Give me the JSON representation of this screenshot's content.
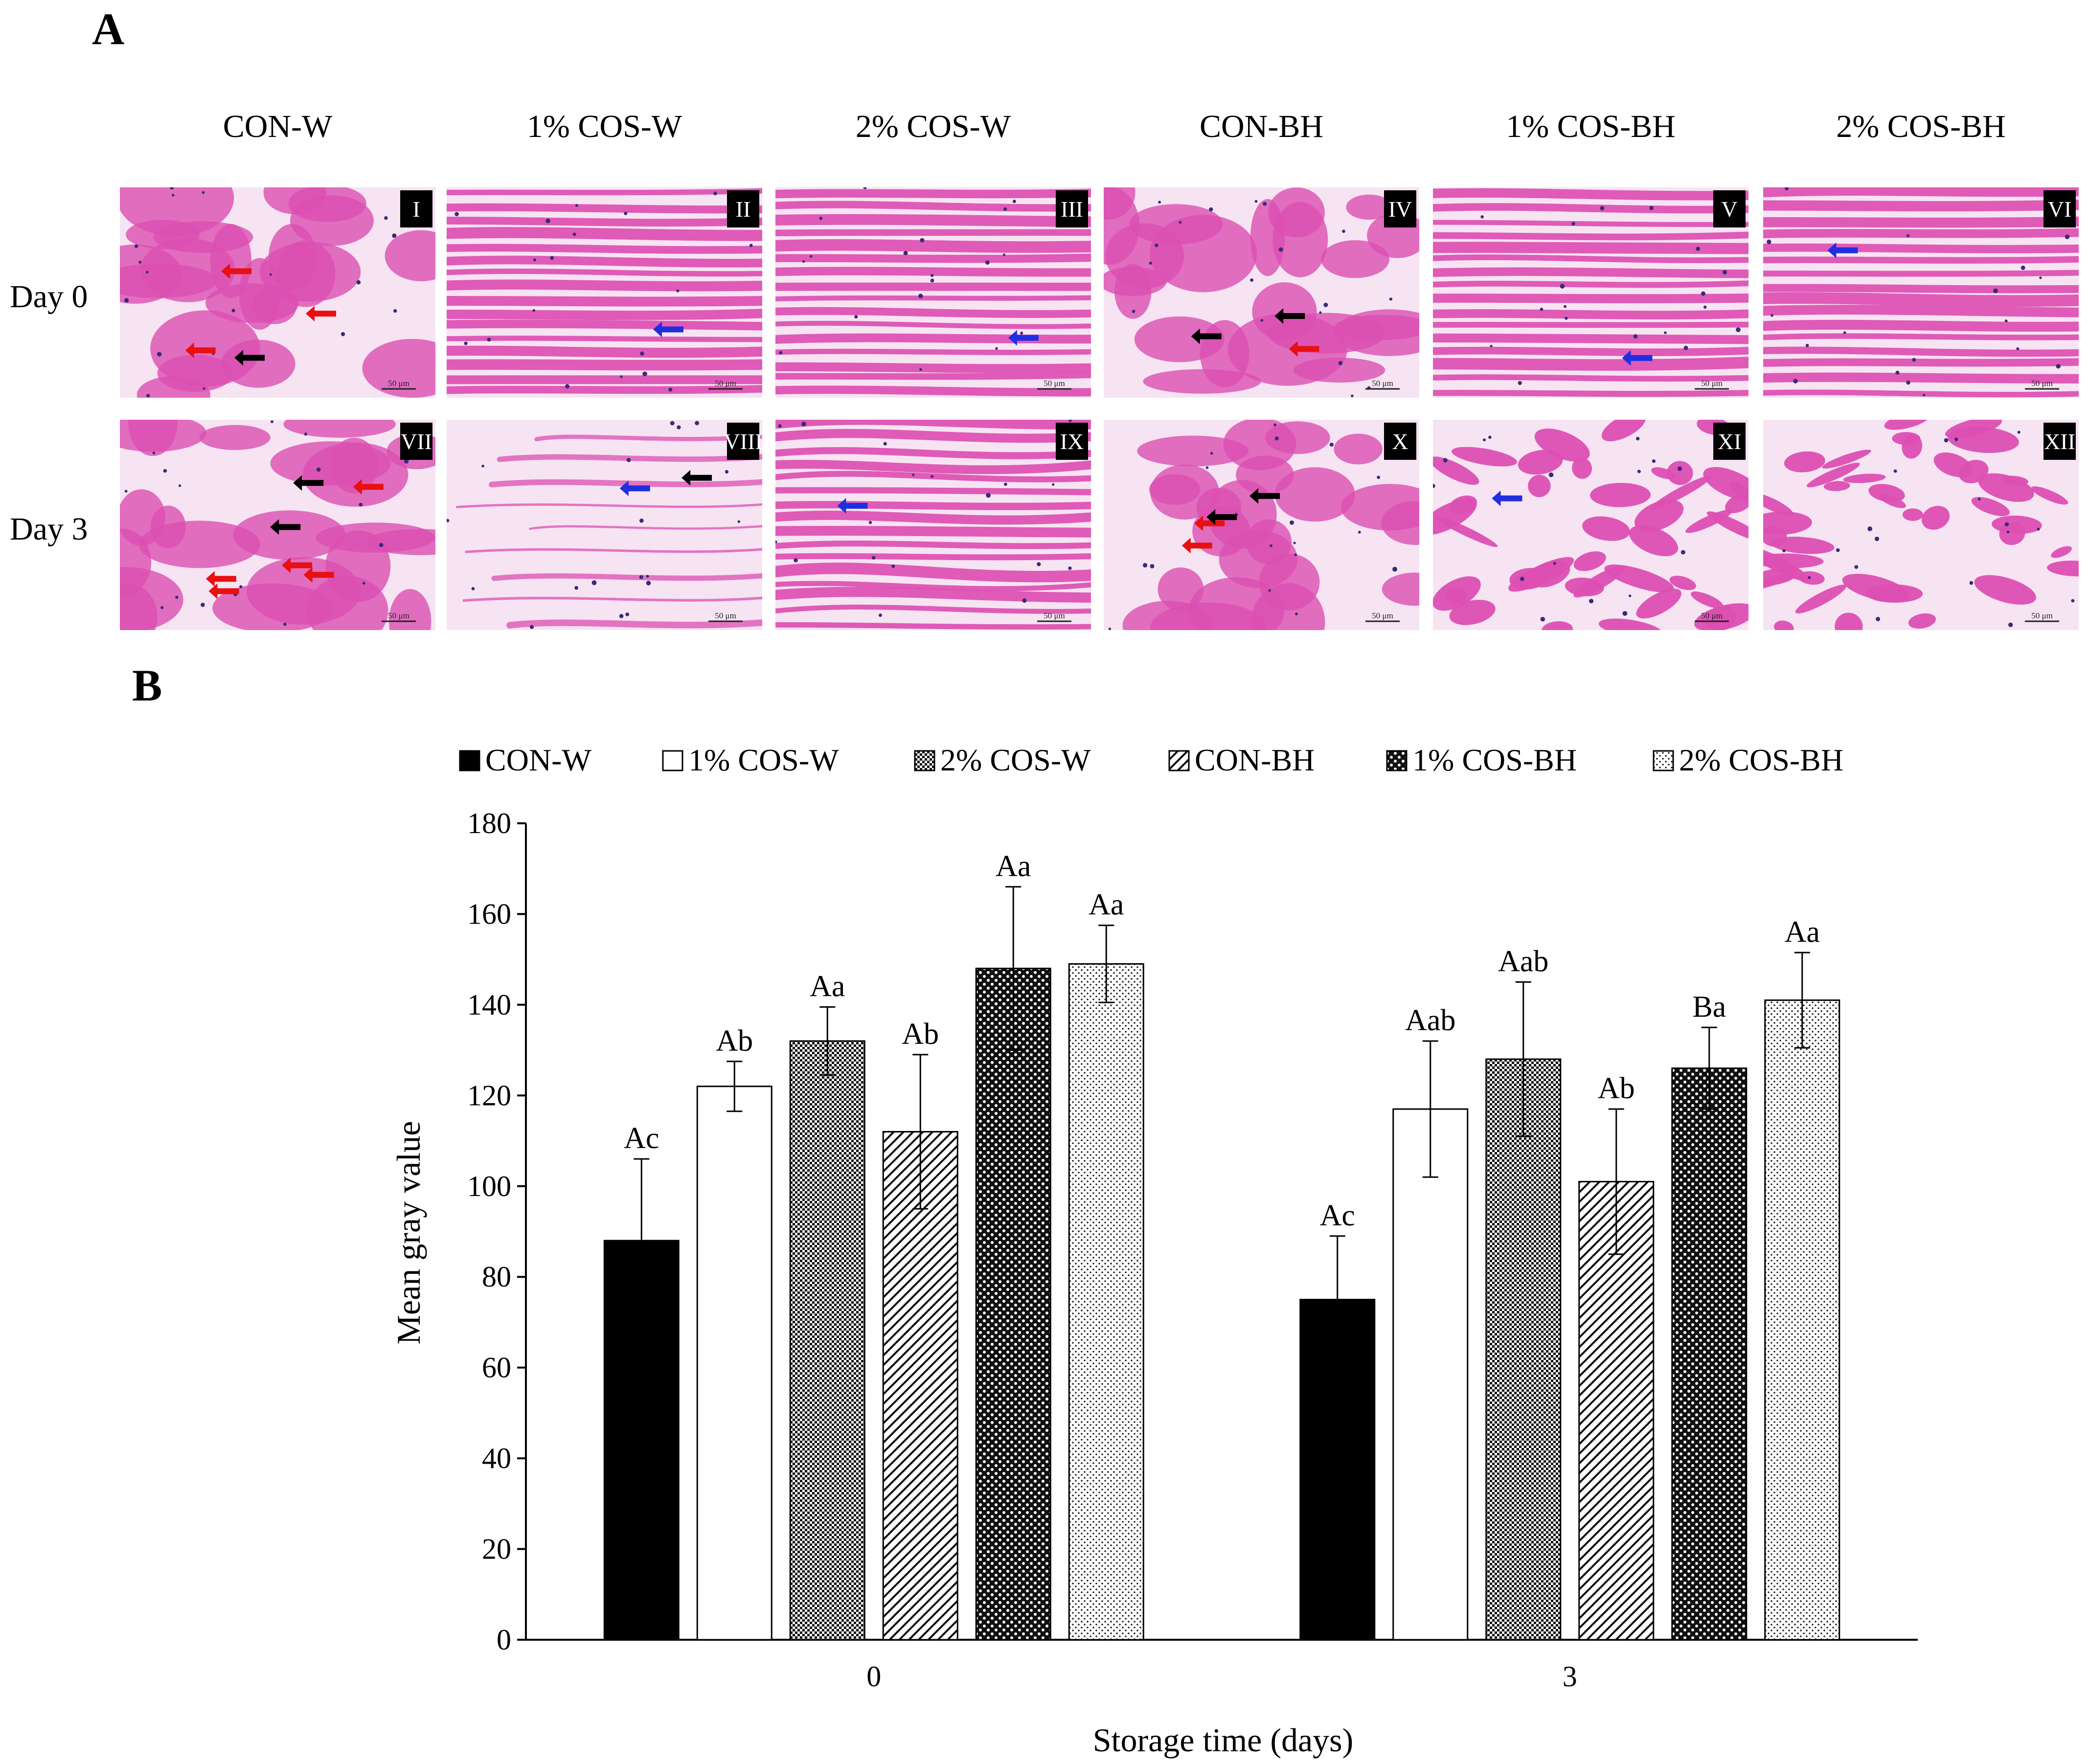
{
  "panel_a": {
    "letter": "A",
    "columns": [
      "CON-W",
      "1% COS-W",
      "2% COS-W",
      "CON-BH",
      "1% COS-BH",
      "2% COS-BH"
    ],
    "rows": [
      "Day 0",
      "Day 3"
    ],
    "numerals": [
      "I",
      "II",
      "III",
      "IV",
      "V",
      "VI",
      "VII",
      "VIII",
      "IX",
      "X",
      "XI",
      "XII"
    ],
    "scale_label": "50 μm",
    "stain_colors": {
      "background": "#f6e4f2",
      "fiber": "#dc4fb2",
      "nucleus": "#3a2a7a"
    },
    "arrow_colors": {
      "black": "#000000",
      "red": "#e81010",
      "blue": "#1f2fe0"
    },
    "arrows": [
      [
        {
          "c": "black"
        },
        {
          "c": "red"
        },
        {
          "c": "red"
        },
        {
          "c": "red"
        }
      ],
      [
        {
          "c": "blue"
        }
      ],
      [
        {
          "c": "blue"
        }
      ],
      [
        {
          "c": "black"
        },
        {
          "c": "black"
        },
        {
          "c": "red"
        }
      ],
      [
        {
          "c": "blue"
        }
      ],
      [
        {
          "c": "blue"
        }
      ],
      [
        {
          "c": "red"
        },
        {
          "c": "black"
        },
        {
          "c": "red"
        },
        {
          "c": "red"
        },
        {
          "c": "red"
        },
        {
          "c": "red"
        },
        {
          "c": "black"
        }
      ],
      [
        {
          "c": "black"
        },
        {
          "c": "blue"
        }
      ],
      [
        {
          "c": "blue"
        }
      ],
      [
        {
          "c": "red"
        },
        {
          "c": "red"
        },
        {
          "c": "black"
        },
        {
          "c": "black"
        }
      ],
      [
        {
          "c": "blue"
        }
      ],
      []
    ]
  },
  "panel_b": {
    "letter": "B"
  },
  "chart_data": {
    "type": "bar",
    "categories": [
      "0",
      "3"
    ],
    "xlabel": "Storage time (days)",
    "ylabel": "Mean gray value",
    "ylim": [
      0,
      180
    ],
    "yticks": [
      0,
      20,
      40,
      60,
      80,
      100,
      120,
      140,
      160,
      180
    ],
    "legend_position": "top",
    "grid": false,
    "series": [
      {
        "name": "CON-W",
        "pattern": "solid-black",
        "values": [
          88,
          75
        ],
        "errors": [
          18,
          14
        ],
        "labels": [
          "Ac",
          "Ac"
        ]
      },
      {
        "name": "1% COS-W",
        "pattern": "white",
        "values": [
          122,
          117
        ],
        "errors": [
          5.5,
          15
        ],
        "labels": [
          "Ab",
          "Aab"
        ]
      },
      {
        "name": "2% COS-W",
        "pattern": "dense-dark",
        "values": [
          132,
          128
        ],
        "errors": [
          7.5,
          17
        ],
        "labels": [
          "Aa",
          "Aab"
        ]
      },
      {
        "name": "CON-BH",
        "pattern": "diagonal",
        "values": [
          112,
          101
        ],
        "errors": [
          17,
          16
        ],
        "labels": [
          "Ab",
          "Ab"
        ]
      },
      {
        "name": "1% COS-BH",
        "pattern": "dots-dark",
        "values": [
          148,
          126
        ],
        "errors": [
          18,
          9
        ],
        "labels": [
          "Aa",
          "Ba"
        ]
      },
      {
        "name": "2% COS-BH",
        "pattern": "dots-light",
        "values": [
          149,
          141
        ],
        "errors": [
          8.5,
          10.5
        ],
        "labels": [
          "Aa",
          "Aa"
        ]
      }
    ]
  }
}
